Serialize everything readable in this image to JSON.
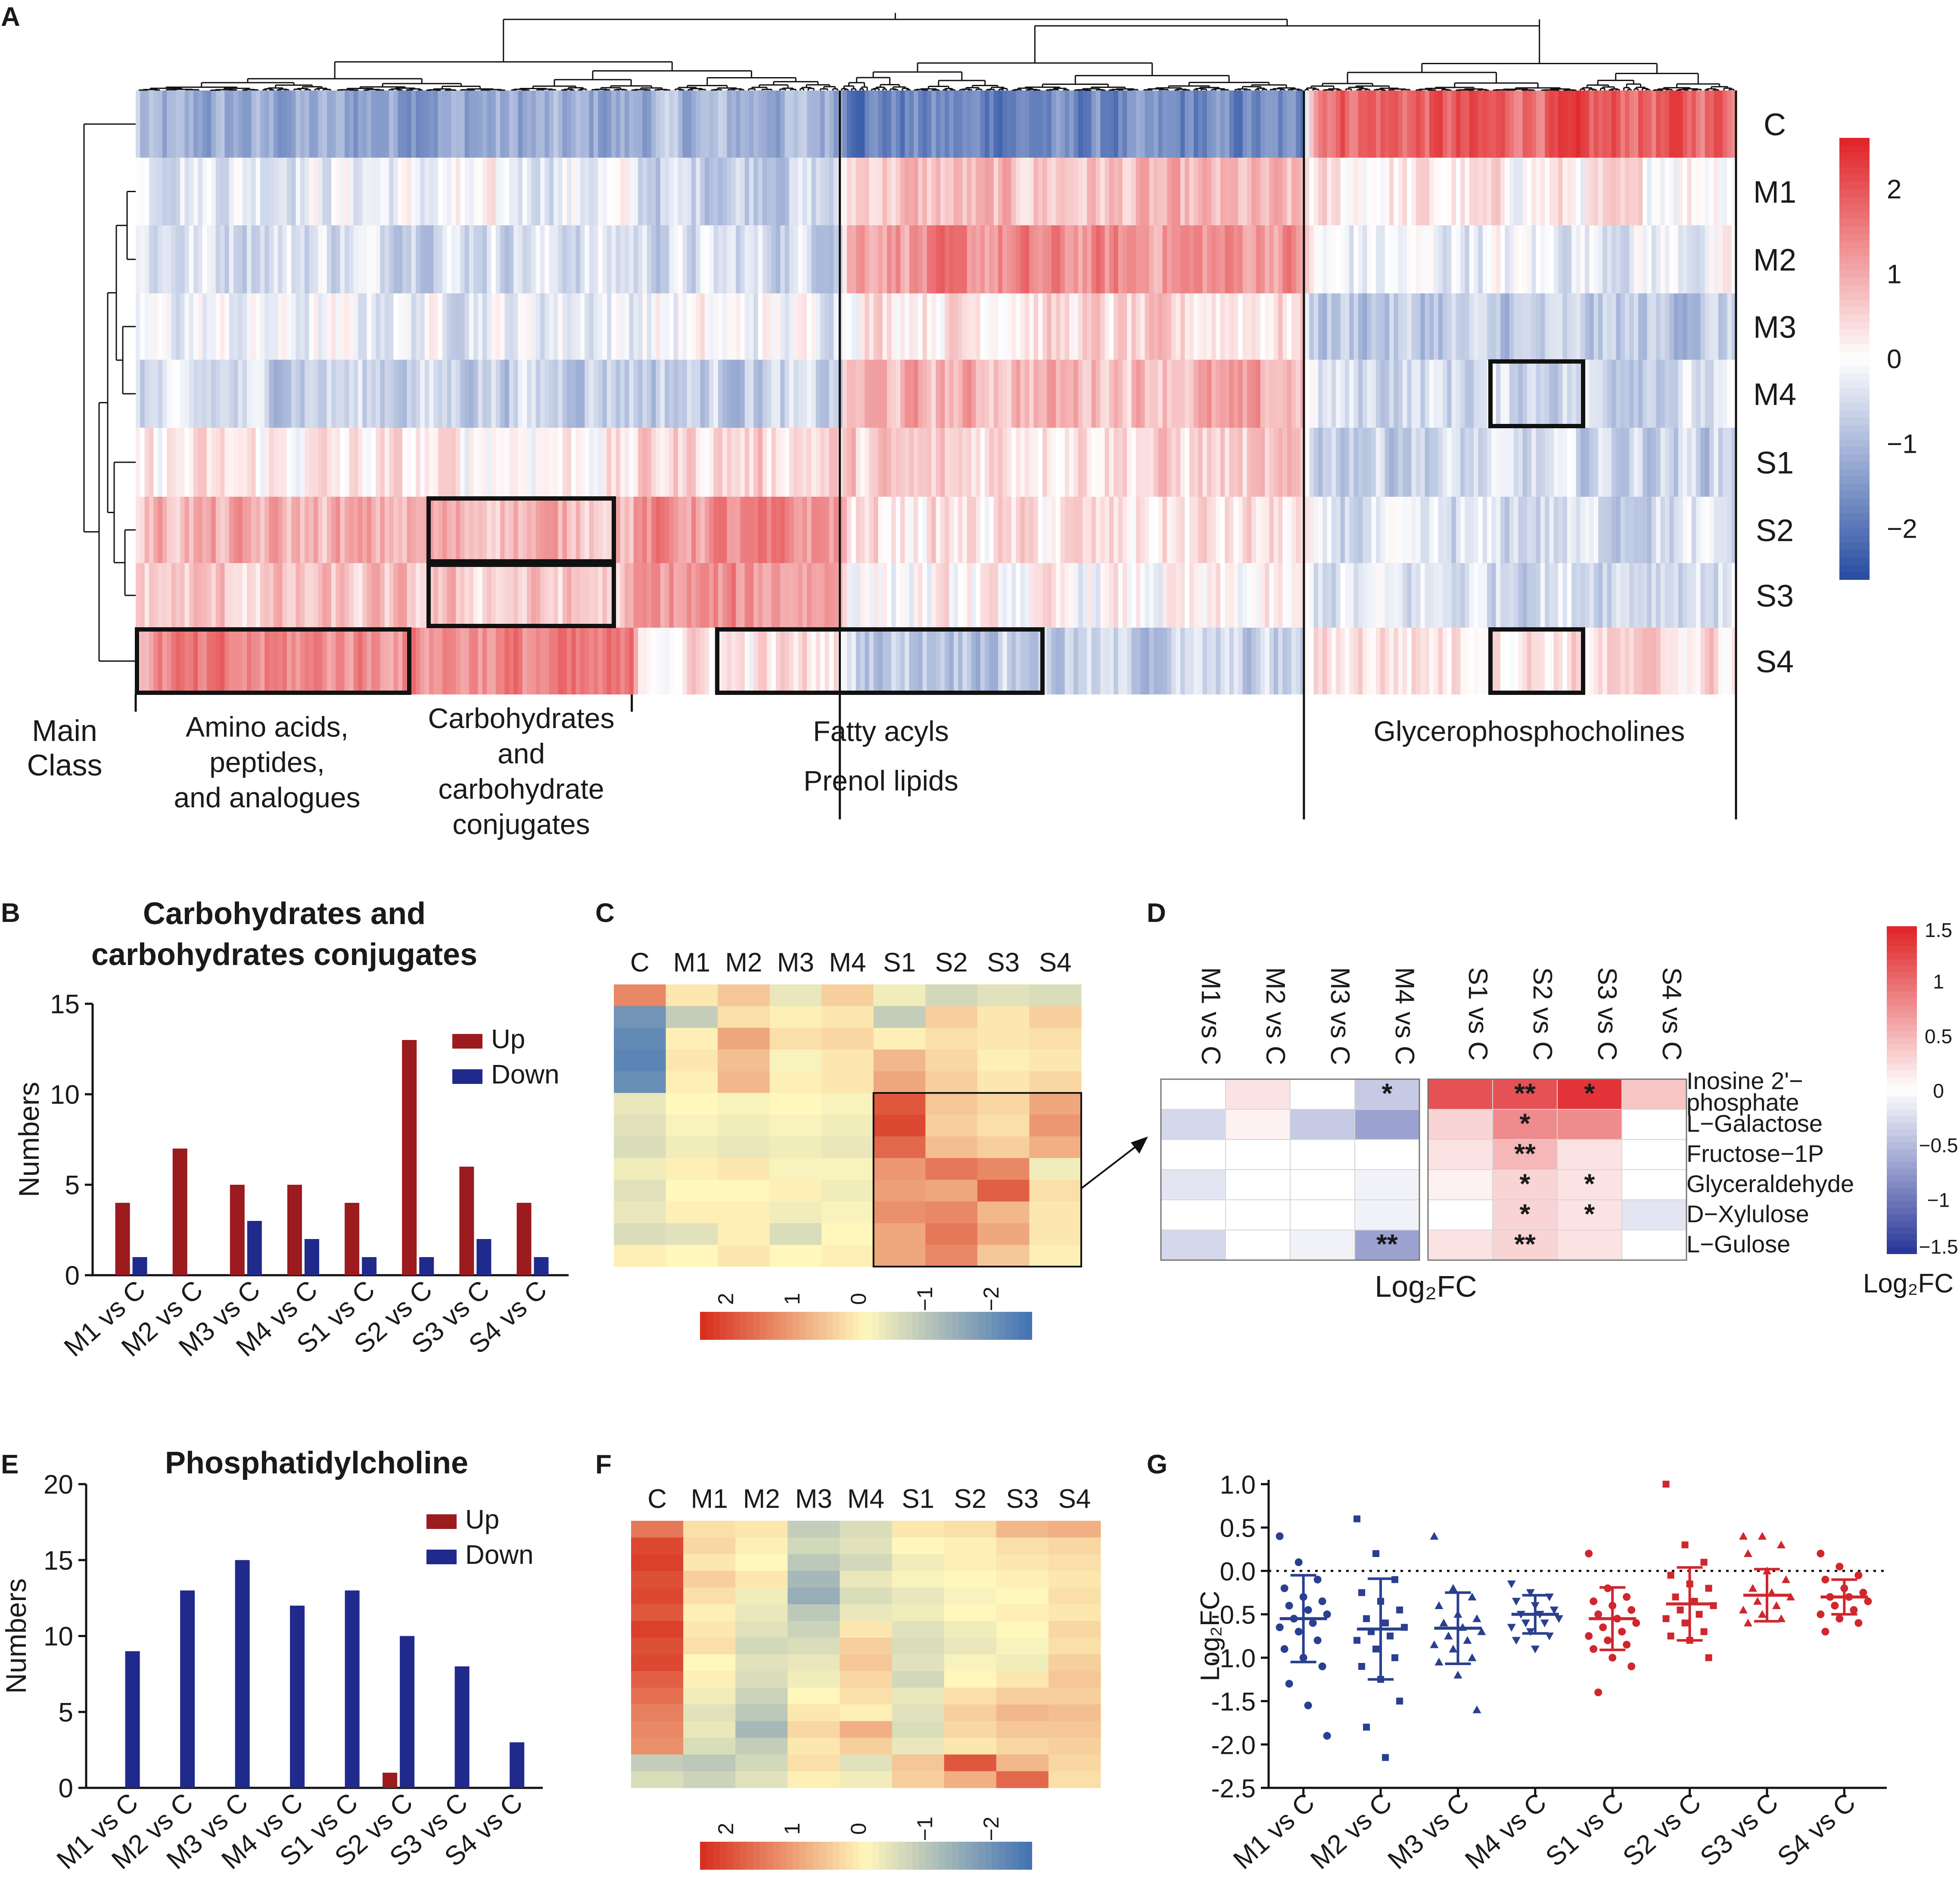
{
  "figure": {
    "panel_labels": [
      "A",
      "B",
      "C",
      "D",
      "E",
      "F",
      "G"
    ],
    "colors": {
      "up": "#9b1b1f",
      "down": "#1f2a8c",
      "heat_high": "#e0262a",
      "heat_mid": "#ffffff",
      "heat_low": "#2a4fa3",
      "yr_high": "#d7301f",
      "yr_mid": "#fff7bc",
      "yr_low": "#4575b4"
    }
  },
  "chart_data": [
    {
      "id": "A",
      "type": "heatmap",
      "rows": [
        "C",
        "M1",
        "M2",
        "M3",
        "M4",
        "S1",
        "S2",
        "S3",
        "S4"
      ],
      "colorbar": {
        "ticks": [
          "2",
          "1",
          "0",
          "−1",
          "−2"
        ],
        "range": [
          -2.6,
          2.6
        ]
      },
      "main_class_label": [
        "Main",
        "Class"
      ],
      "class_lines": [
        [
          "Amino acids,",
          "peptides,",
          "and analogues"
        ],
        [
          "Carbohydrates",
          "and",
          "carbohydrate",
          "conjugates"
        ],
        [
          "Fatty acyls",
          "Prenol lipids"
        ],
        [
          "Glycerophosphocholines"
        ]
      ],
      "class_fractions": [
        0.31,
        0.13,
        0.29,
        0.27
      ],
      "class_mean_z": {
        "C": [
          -1.3,
          -1.1,
          -1.8,
          1.9
        ],
        "M1": [
          -0.2,
          -0.6,
          0.7,
          0.2
        ],
        "M2": [
          -0.4,
          -0.5,
          1.3,
          -0.2
        ],
        "M3": [
          -0.2,
          -0.1,
          0.4,
          -0.8
        ],
        "M4": [
          -0.6,
          -0.7,
          0.9,
          -0.5
        ],
        "S1": [
          0.2,
          0.5,
          0.5,
          -0.6
        ],
        "S2": [
          0.9,
          1.3,
          0.3,
          -0.5
        ],
        "S3": [
          0.6,
          1.2,
          0.0,
          -0.4
        ],
        "S4": [
          1.4,
          0.3,
          -0.7,
          0.4
        ]
      },
      "highlight_boxes": [
        {
          "row": "M4",
          "class": "Glycerophosphocholines"
        },
        {
          "row": "S2",
          "class": "Carbohydrates and carbohydrate conjugates"
        },
        {
          "row": "S3",
          "class": "Carbohydrates and carbohydrate conjugates"
        },
        {
          "row": "S4",
          "class": "Amino acids, peptides, and analogues"
        },
        {
          "row": "S4",
          "class": "Fatty acyls"
        },
        {
          "row": "S4",
          "class": "Glycerophosphocholines"
        }
      ]
    },
    {
      "id": "B",
      "type": "bar",
      "title": [
        "Carbohydrates and",
        "carbohydrates conjugates"
      ],
      "ylabel": "Numbers",
      "categories": [
        "M1 vs C",
        "M2 vs C",
        "M3 vs C",
        "M4 vs C",
        "S1 vs C",
        "S2 vs C",
        "S3 vs C",
        "S4 vs C"
      ],
      "series": [
        {
          "name": "Up",
          "values": [
            4,
            7,
            5,
            5,
            4,
            13,
            6,
            4
          ]
        },
        {
          "name": "Down",
          "values": [
            1,
            0,
            3,
            2,
            1,
            1,
            2,
            1
          ]
        }
      ],
      "yticks": [
        "0",
        "5",
        "10",
        "15"
      ],
      "ylim": [
        0,
        15
      ],
      "legend": "top-right"
    },
    {
      "id": "C",
      "type": "heatmap",
      "columns": [
        "C",
        "M1",
        "M2",
        "M3",
        "M4",
        "S1",
        "S2",
        "S3",
        "S4"
      ],
      "colorbar_ticks": [
        "2",
        "1",
        "0",
        "−1",
        "−2"
      ],
      "colorbar_range": [
        2.5,
        -2.5
      ],
      "values": [
        [
          1.4,
          0.2,
          0.6,
          -0.3,
          0.5,
          -0.2,
          -0.6,
          -0.4,
          -0.5
        ],
        [
          -1.9,
          -0.8,
          0.3,
          0.1,
          0.2,
          -0.8,
          0.5,
          0.2,
          0.5
        ],
        [
          -2.1,
          0.1,
          1.0,
          0.3,
          0.4,
          0.1,
          0.3,
          0.2,
          0.3
        ],
        [
          -2.2,
          0.2,
          0.7,
          -0.1,
          0.2,
          0.8,
          0.4,
          0.1,
          0.2
        ],
        [
          -2.0,
          0.1,
          0.8,
          0.1,
          0.2,
          1.0,
          0.5,
          0.2,
          0.4
        ],
        [
          -0.3,
          0.0,
          -0.1,
          0.0,
          -0.1,
          2.0,
          0.6,
          0.4,
          1.0
        ],
        [
          -0.4,
          -0.1,
          -0.2,
          -0.1,
          -0.2,
          2.2,
          0.5,
          0.3,
          1.2
        ],
        [
          -0.5,
          -0.2,
          -0.3,
          -0.2,
          -0.3,
          1.8,
          0.7,
          0.5,
          0.9
        ],
        [
          -0.2,
          0.1,
          0.2,
          -0.1,
          -0.1,
          1.2,
          1.6,
          1.4,
          -0.2
        ],
        [
          -0.4,
          0.0,
          0.0,
          0.1,
          -0.2,
          1.1,
          1.0,
          1.9,
          0.3
        ],
        [
          -0.3,
          0.1,
          0.1,
          -0.2,
          -0.1,
          1.3,
          1.4,
          0.8,
          0.2
        ],
        [
          -0.5,
          -0.4,
          0.1,
          -0.5,
          0.0,
          1.0,
          1.6,
          1.0,
          0.2
        ],
        [
          0.1,
          0.0,
          0.2,
          0.0,
          0.1,
          1.0,
          1.4,
          0.6,
          0.1
        ]
      ],
      "box": {
        "rows": [
          5,
          12
        ],
        "cols": [
          5,
          8
        ]
      }
    },
    {
      "id": "D",
      "type": "heatmap",
      "columns": [
        "M1 vs C",
        "M2 vs C",
        "M3 vs C",
        "M4 vs C",
        "S1 vs C",
        "S2 vs C",
        "S3 vs C",
        "S4 vs C"
      ],
      "rows": [
        "Inosine 2'− phosphate",
        "L−Galactose",
        "Fructose−1P",
        "Glyceraldehyde",
        "D−Xylulose",
        "L−Gulose"
      ],
      "row_label_lines": [
        [
          "Inosine 2'−",
          "phosphate"
        ],
        [
          "L−Galactose"
        ],
        [
          "Fructose−1P"
        ],
        [
          "Glyceraldehyde"
        ],
        [
          "D−Xylulose"
        ],
        [
          "L−Gulose"
        ]
      ],
      "values": [
        [
          0.0,
          0.2,
          0.0,
          -0.4,
          1.2,
          1.2,
          1.4,
          0.4
        ],
        [
          -0.3,
          0.1,
          -0.4,
          -0.7,
          0.3,
          0.8,
          0.8,
          0.0
        ],
        [
          0.0,
          0.0,
          0.0,
          0.0,
          0.2,
          0.5,
          0.2,
          0.0
        ],
        [
          -0.2,
          0.0,
          0.0,
          -0.1,
          0.1,
          0.3,
          0.2,
          0.0
        ],
        [
          0.0,
          0.0,
          0.0,
          -0.1,
          0.0,
          0.3,
          0.2,
          -0.2
        ],
        [
          -0.3,
          0.0,
          -0.1,
          -0.7,
          0.2,
          0.3,
          0.2,
          0.0
        ]
      ],
      "stars": [
        [
          "",
          "",
          "",
          "*",
          "",
          "**",
          "*",
          ""
        ],
        [
          "",
          "",
          "",
          "",
          "",
          "*",
          "",
          ""
        ],
        [
          "",
          "",
          "",
          "",
          "",
          "**",
          "",
          ""
        ],
        [
          "",
          "",
          "",
          "",
          "",
          "*",
          "*",
          ""
        ],
        [
          "",
          "",
          "",
          "",
          "",
          "*",
          "*",
          ""
        ],
        [
          "",
          "",
          "",
          "**",
          "",
          "**",
          "",
          ""
        ]
      ],
      "xlabel": "Log₂FC",
      "colorbar_title": "Log₂FC",
      "colorbar_ticks": [
        "1.5",
        "1",
        "0.5",
        "0",
        "−0.5",
        "−1",
        "−1.5"
      ],
      "colorbar_range": [
        1.5,
        -1.5
      ]
    },
    {
      "id": "E",
      "type": "bar",
      "title": "Phosphatidylcholine",
      "ylabel": "Numbers",
      "categories": [
        "M1 vs C",
        "M2 vs C",
        "M3 vs C",
        "M4 vs C",
        "S1 vs C",
        "S2 vs C",
        "S3 vs C",
        "S4 vs C"
      ],
      "series": [
        {
          "name": "Up",
          "values": [
            0,
            0,
            0,
            0,
            0,
            1,
            0,
            0
          ]
        },
        {
          "name": "Down",
          "values": [
            9,
            13,
            15,
            12,
            13,
            10,
            8,
            3
          ]
        }
      ],
      "yticks": [
        "0",
        "5",
        "10",
        "15",
        "20"
      ],
      "ylim": [
        0,
        20
      ],
      "legend": "top-right"
    },
    {
      "id": "F",
      "type": "heatmap",
      "columns": [
        "C",
        "M1",
        "M2",
        "M3",
        "M4",
        "S1",
        "S2",
        "S3",
        "S4"
      ],
      "colorbar_ticks": [
        "2",
        "1",
        "0",
        "−1",
        "−2"
      ],
      "colorbar_range": [
        2.5,
        -2.5
      ],
      "values": [
        [
          1.6,
          0.3,
          0.2,
          -0.8,
          -0.5,
          0.2,
          0.3,
          0.8,
          0.9
        ],
        [
          2.2,
          0.4,
          0.1,
          -0.6,
          -0.4,
          0.0,
          0.1,
          0.3,
          0.4
        ],
        [
          2.3,
          0.2,
          0.0,
          -0.9,
          -0.6,
          -0.2,
          0.1,
          0.2,
          0.3
        ],
        [
          2.1,
          0.5,
          0.2,
          -1.2,
          -0.3,
          -0.1,
          0.0,
          0.1,
          0.2
        ],
        [
          2.2,
          0.3,
          -0.2,
          -1.4,
          -0.5,
          -0.3,
          -0.1,
          0.0,
          0.3
        ],
        [
          2.0,
          0.1,
          -0.3,
          -0.9,
          -0.3,
          -0.2,
          0.0,
          0.1,
          0.2
        ],
        [
          2.3,
          0.2,
          -0.4,
          -0.7,
          0.2,
          -0.4,
          -0.2,
          0.0,
          0.4
        ],
        [
          2.1,
          0.3,
          -0.6,
          -0.5,
          0.5,
          -0.5,
          -0.3,
          -0.1,
          0.3
        ],
        [
          2.2,
          0.0,
          -0.4,
          -0.3,
          0.6,
          -0.4,
          -0.1,
          -0.2,
          0.5
        ],
        [
          1.9,
          0.1,
          -0.5,
          -0.2,
          0.4,
          -0.6,
          0.0,
          0.2,
          0.6
        ],
        [
          1.7,
          -0.2,
          -0.7,
          0.0,
          0.3,
          -0.3,
          0.3,
          0.5,
          0.5
        ],
        [
          1.5,
          -0.4,
          -0.9,
          0.2,
          0.1,
          -0.4,
          0.5,
          0.8,
          0.7
        ],
        [
          1.4,
          -0.3,
          -1.2,
          0.4,
          0.9,
          -0.5,
          0.4,
          0.6,
          0.6
        ],
        [
          1.3,
          -0.5,
          -0.8,
          0.2,
          0.5,
          -0.3,
          0.2,
          0.4,
          0.5
        ],
        [
          -0.8,
          -0.9,
          -0.6,
          0.3,
          -0.4,
          0.6,
          2.0,
          0.8,
          0.4
        ],
        [
          -0.5,
          -0.7,
          -0.4,
          0.1,
          -0.2,
          0.5,
          0.9,
          1.8,
          0.3
        ]
      ]
    },
    {
      "id": "G",
      "type": "scatter",
      "ylabel": "Log₂FC",
      "categories": [
        "M1 vs C",
        "M2 vs C",
        "M3 vs C",
        "M4 vs C",
        "S1 vs C",
        "S2 vs C",
        "S3 vs C",
        "S4 vs C"
      ],
      "yticks": [
        "1.0",
        "0.5",
        "0.0",
        "-0.5",
        "-1.0",
        "-1.5",
        "-2.0",
        "-2.5"
      ],
      "ylim": [
        -2.5,
        1.0
      ],
      "reference_line": 0.0,
      "series": [
        {
          "group": "M1 vs C",
          "marker": "circle",
          "color": "#2a3f8f",
          "mean": -0.55,
          "sd": 0.5,
          "points": [
            0.4,
            0.1,
            -0.1,
            -0.2,
            -0.3,
            -0.35,
            -0.4,
            -0.45,
            -0.5,
            -0.55,
            -0.6,
            -0.65,
            -0.7,
            -0.8,
            -0.9,
            -1.0,
            -1.1,
            -1.3,
            -1.55,
            -1.9
          ]
        },
        {
          "group": "M2 vs C",
          "marker": "square",
          "color": "#2a3f8f",
          "mean": -0.67,
          "sd": 0.58,
          "points": [
            0.6,
            0.2,
            -0.1,
            -0.25,
            -0.35,
            -0.45,
            -0.55,
            -0.6,
            -0.65,
            -0.7,
            -0.75,
            -0.8,
            -0.9,
            -1.0,
            -1.1,
            -1.25,
            -1.5,
            -1.8,
            -2.15
          ]
        },
        {
          "group": "M3 vs C",
          "marker": "triangle",
          "color": "#2a3f8f",
          "mean": -0.66,
          "sd": 0.41,
          "points": [
            0.4,
            -0.2,
            -0.3,
            -0.4,
            -0.5,
            -0.55,
            -0.6,
            -0.65,
            -0.7,
            -0.75,
            -0.8,
            -0.85,
            -0.9,
            -1.0,
            -1.05,
            -1.2,
            -1.6
          ]
        },
        {
          "group": "M4 vs C",
          "marker": "inverted-triangle",
          "color": "#2a3f8f",
          "mean": -0.5,
          "sd": 0.22,
          "points": [
            -0.15,
            -0.25,
            -0.3,
            -0.35,
            -0.4,
            -0.45,
            -0.5,
            -0.5,
            -0.55,
            -0.6,
            -0.6,
            -0.65,
            -0.7,
            -0.75,
            -0.8,
            -0.9
          ]
        },
        {
          "group": "S1 vs C",
          "marker": "circle",
          "color": "#d0262d",
          "mean": -0.55,
          "sd": 0.36,
          "points": [
            0.2,
            -0.2,
            -0.3,
            -0.35,
            -0.4,
            -0.45,
            -0.5,
            -0.55,
            -0.6,
            -0.65,
            -0.7,
            -0.75,
            -0.8,
            -0.85,
            -0.9,
            -1.0,
            -1.1,
            -1.4
          ]
        },
        {
          "group": "S2 vs C",
          "marker": "square",
          "color": "#d0262d",
          "mean": -0.38,
          "sd": 0.42,
          "points": [
            1.0,
            0.3,
            0.1,
            -0.05,
            -0.15,
            -0.2,
            -0.3,
            -0.35,
            -0.4,
            -0.45,
            -0.5,
            -0.55,
            -0.6,
            -0.7,
            -0.75,
            -0.8,
            -1.0
          ]
        },
        {
          "group": "S3 vs C",
          "marker": "triangle",
          "color": "#d0262d",
          "mean": -0.28,
          "sd": 0.3,
          "points": [
            0.4,
            0.4,
            0.3,
            0.2,
            0.0,
            -0.1,
            -0.2,
            -0.25,
            -0.3,
            -0.35,
            -0.4,
            -0.45,
            -0.5,
            -0.55,
            -0.6
          ]
        },
        {
          "group": "S4 vs C",
          "marker": "circle",
          "color": "#d0262d",
          "mean": -0.3,
          "sd": 0.2,
          "points": [
            0.2,
            0.05,
            -0.05,
            -0.1,
            -0.2,
            -0.25,
            -0.3,
            -0.3,
            -0.35,
            -0.4,
            -0.45,
            -0.5,
            -0.55,
            -0.6,
            -0.7
          ]
        }
      ]
    }
  ]
}
